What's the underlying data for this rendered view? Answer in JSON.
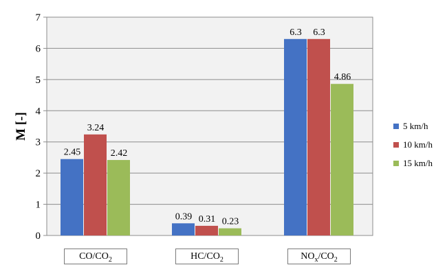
{
  "chart_data": {
    "type": "bar",
    "categories": [
      {
        "base": "CO/CO",
        "sub": "2"
      },
      {
        "base": "HC/CO",
        "sub": "2"
      },
      {
        "base": "NO",
        "sub": "x",
        "tail": "/CO",
        "sub2": "2"
      }
    ],
    "series": [
      {
        "name": "5 km/h",
        "color": "#4472c4",
        "values": [
          2.45,
          0.39,
          6.3
        ],
        "labels": [
          "2.45",
          "0.39",
          "6.3"
        ]
      },
      {
        "name": "10 km/h",
        "color": "#c0504d",
        "values": [
          3.24,
          0.31,
          6.3
        ],
        "labels": [
          "3.24",
          "0.31",
          "6.3"
        ]
      },
      {
        "name": "15 km/h",
        "color": "#9bbb59",
        "values": [
          2.42,
          0.23,
          4.86
        ],
        "labels": [
          "2.42",
          "0.23",
          "4.86"
        ]
      }
    ],
    "ylabel": "M [-]",
    "ylim": [
      0,
      7
    ],
    "yticks": [
      "0",
      "1",
      "2",
      "3",
      "4",
      "5",
      "6",
      "7"
    ],
    "grid": true,
    "legend": "right"
  }
}
